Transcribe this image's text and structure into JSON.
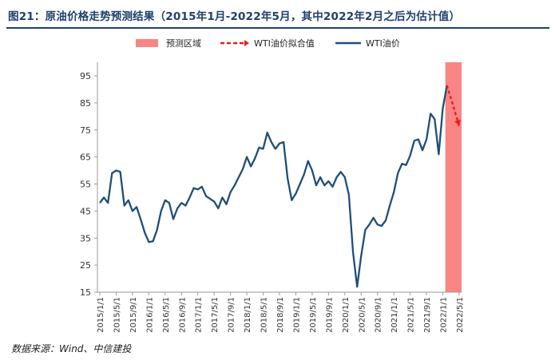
{
  "figure": {
    "title": "图21：原油价格走势预测结果（2015年1月-2022年5月，其中2022年2月之后为估计值）",
    "source": "数据来源：Wind、中信建投"
  },
  "chart_data": {
    "type": "line",
    "title": "图21：原油价格走势预测结果（2015年1月-2022年5月，其中2022年2月之后为估计值）",
    "xlabel": "",
    "ylabel": "",
    "ylim": [
      15,
      95
    ],
    "yticks": [
      15,
      25,
      35,
      45,
      55,
      65,
      75,
      85,
      95
    ],
    "grid": false,
    "legend_position": "top",
    "x_tick_labels": [
      "2015/1/1",
      "2015/5/1",
      "2015/9/1",
      "2016/1/1",
      "2016/5/1",
      "2016/9/1",
      "2017/1/1",
      "2017/5/1",
      "2017/9/1",
      "2018/1/1",
      "2018/5/1",
      "2018/9/1",
      "2019/1/1",
      "2019/5/1",
      "2019/9/1",
      "2020/1/1",
      "2020/5/1",
      "2020/9/1",
      "2021/1/1",
      "2021/5/1",
      "2021/9/1",
      "2022/1/1",
      "2022/5/1"
    ],
    "legend": [
      "预测区域",
      "WTI油价拟合值",
      "WTI油价"
    ],
    "forecast_region": {
      "from": "2022/2",
      "to": "2022/5",
      "color": "#f98585"
    },
    "series": [
      {
        "name": "WTI油价",
        "color": "#1f4e79",
        "x": [
          "2015/1",
          "2015/2",
          "2015/3",
          "2015/4",
          "2015/5",
          "2015/6",
          "2015/7",
          "2015/8",
          "2015/9",
          "2015/10",
          "2015/11",
          "2015/12",
          "2016/1",
          "2016/2",
          "2016/3",
          "2016/4",
          "2016/5",
          "2016/6",
          "2016/7",
          "2016/8",
          "2016/9",
          "2016/10",
          "2016/11",
          "2016/12",
          "2017/1",
          "2017/2",
          "2017/3",
          "2017/4",
          "2017/5",
          "2017/6",
          "2017/7",
          "2017/8",
          "2017/9",
          "2017/10",
          "2017/11",
          "2017/12",
          "2018/1",
          "2018/2",
          "2018/3",
          "2018/4",
          "2018/5",
          "2018/6",
          "2018/7",
          "2018/8",
          "2018/9",
          "2018/10",
          "2018/11",
          "2018/12",
          "2019/1",
          "2019/2",
          "2019/3",
          "2019/4",
          "2019/5",
          "2019/6",
          "2019/7",
          "2019/8",
          "2019/9",
          "2019/10",
          "2019/11",
          "2019/12",
          "2020/1",
          "2020/2",
          "2020/3",
          "2020/4",
          "2020/5",
          "2020/6",
          "2020/7",
          "2020/8",
          "2020/9",
          "2020/10",
          "2020/11",
          "2020/12",
          "2021/1",
          "2021/2",
          "2021/3",
          "2021/4",
          "2021/5",
          "2021/6",
          "2021/7",
          "2021/8",
          "2021/9",
          "2021/10",
          "2021/11",
          "2021/12",
          "2022/1",
          "2022/2"
        ],
        "values": [
          48,
          50,
          48,
          59,
          60,
          59.5,
          47,
          49,
          45,
          46.5,
          42,
          37,
          33.5,
          33.8,
          38,
          45,
          49,
          48,
          42,
          46,
          48,
          47,
          50,
          53.5,
          53,
          54,
          50.5,
          49.5,
          48.5,
          46,
          50,
          47.5,
          52,
          54.5,
          57.5,
          60.5,
          65,
          61.5,
          64.5,
          68.5,
          68,
          74,
          70.5,
          68,
          70,
          70.5,
          57,
          49,
          51.5,
          55,
          58.5,
          63.5,
          60,
          54.5,
          57.5,
          54.5,
          56,
          54,
          57.5,
          59.5,
          57.5,
          51,
          30,
          17,
          28.5,
          38,
          40,
          42.5,
          40,
          39.5,
          41.5,
          47,
          52,
          59,
          62.5,
          62,
          65.5,
          71,
          71.5,
          67.5,
          71.5,
          81,
          79,
          66,
          83,
          91.5
        ]
      },
      {
        "name": "WTI油价拟合值",
        "color": "#ee1c1c",
        "x": [
          "2022/2",
          "2022/3",
          "2022/4",
          "2022/5"
        ],
        "values": [
          91.5,
          86.5,
          81.5,
          76.5
        ]
      }
    ]
  }
}
